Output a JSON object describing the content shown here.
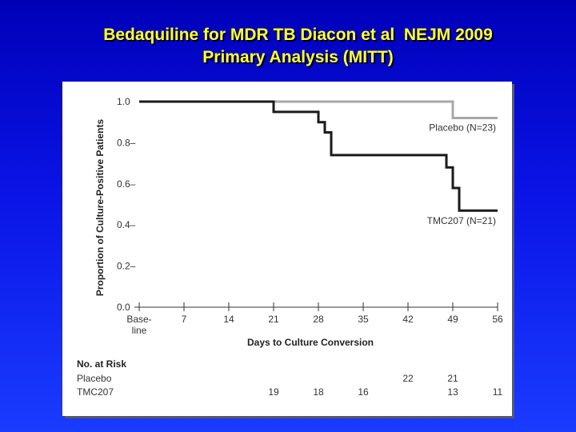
{
  "title": {
    "line1": "Bedaquiline for MDR TB Diacon et al  NEJM 2009",
    "line2": "Primary Analysis (MITT)"
  },
  "colors": {
    "background": "#0a14e6",
    "title": "#ffff33",
    "tmc207": "#1a1a1a",
    "placebo": "#a8a8a8"
  },
  "chart_data": {
    "type": "line",
    "step": true,
    "title": "",
    "xlabel": "Days to Culture Conversion",
    "ylabel": "Proportion of Culture-Positive Patients",
    "xlim": [
      0,
      56
    ],
    "ylim": [
      0,
      1.0
    ],
    "x_ticks": [
      0,
      7,
      14,
      21,
      28,
      35,
      42,
      49,
      56
    ],
    "x_tick_labels": [
      "Base-\nline",
      "7",
      "14",
      "21",
      "28",
      "35",
      "42",
      "49",
      "56"
    ],
    "y_ticks": [
      0,
      0.2,
      0.4,
      0.6,
      0.8,
      1.0
    ],
    "y_tick_labels": [
      "0.0",
      "0.2–",
      "0.4–",
      "0.6–",
      "0.8–",
      "1.0"
    ],
    "grid": false,
    "series": [
      {
        "name": "Placebo (N=23)",
        "x": [
          0,
          42,
          49,
          56
        ],
        "y": [
          1.0,
          1.0,
          0.92,
          0.92
        ]
      },
      {
        "name": "TMC207 (N=21)",
        "x": [
          0,
          21,
          28,
          29,
          30,
          42,
          47,
          48,
          49,
          50,
          56
        ],
        "y": [
          1.0,
          0.95,
          0.9,
          0.85,
          0.74,
          0.74,
          0.74,
          0.68,
          0.58,
          0.47,
          0.47
        ]
      }
    ],
    "number_at_risk": {
      "header": "No. at Risk",
      "rows": [
        {
          "label": "Placebo",
          "values": [
            {
              "x": 42,
              "n": "22"
            },
            {
              "x": 49,
              "n": "21"
            }
          ]
        },
        {
          "label": "TMC207",
          "values": [
            {
              "x": 21,
              "n": "19"
            },
            {
              "x": 28,
              "n": "18"
            },
            {
              "x": 35,
              "n": "16"
            },
            {
              "x": 49,
              "n": "13"
            },
            {
              "x": 56,
              "n": "11"
            }
          ]
        }
      ]
    }
  }
}
